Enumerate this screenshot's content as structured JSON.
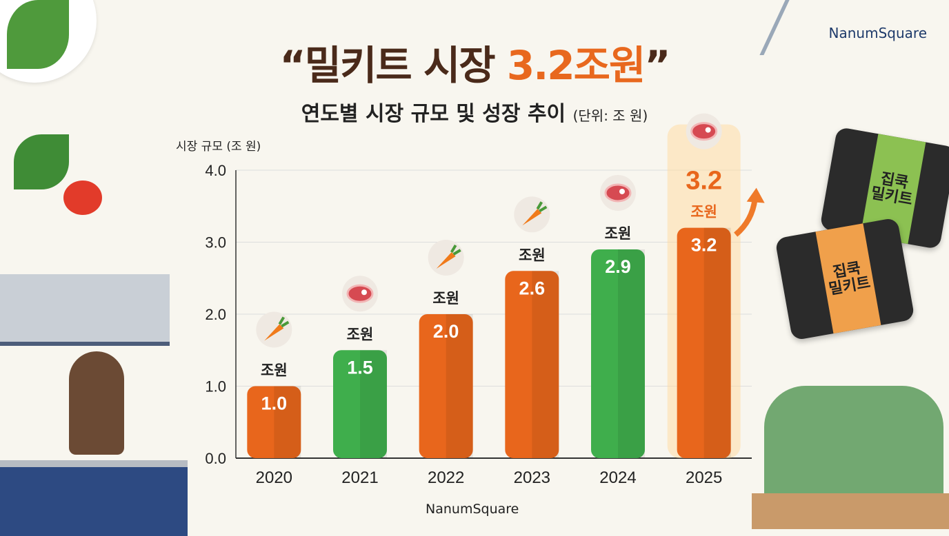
{
  "header": {
    "title_prefix": "“밀키트 시장 ",
    "title_highlight": "3.2조원",
    "title_suffix": "”",
    "subtitle": "연도별 시장 규모 및 성장 추이",
    "subtitle_unit": "(단위: 조 원)",
    "brand": "NanumSquare"
  },
  "footer": {
    "brand": "NanumSquare"
  },
  "colors": {
    "orange": "#e8661c",
    "green": "#3fae4c",
    "title": "#4a2a1a",
    "accent": "#e8681e"
  },
  "packages": [
    {
      "line1": "집쿡",
      "line2": "밀키트"
    },
    {
      "line1": "집쿡",
      "line2": "밀키트"
    }
  ],
  "chart_data": {
    "type": "bar",
    "title": "연도별 시장 규모 및 성장 추이",
    "ylabel": "시장 규모 (조 원)",
    "xlabel": "",
    "ylim": [
      0,
      4
    ],
    "yticks": [
      "0.0",
      "1.0",
      "2.0",
      "3.0",
      "4.0"
    ],
    "grid": true,
    "categories": [
      "2020",
      "2021",
      "2022",
      "2023",
      "2024",
      "2025"
    ],
    "values": [
      1.0,
      1.5,
      2.0,
      2.6,
      2.9,
      3.2
    ],
    "value_labels": [
      "1.0",
      "1.5",
      "2.0",
      "2.6",
      "2.9",
      "3.2"
    ],
    "unit_label": "조원",
    "bar_colors": [
      "orange",
      "green",
      "orange",
      "orange",
      "green",
      "orange"
    ],
    "icons": [
      "carrot-icon",
      "meat-icon",
      "carrot-icon",
      "carrot-icon",
      "meat-icon",
      "meat-icon"
    ],
    "highlight": {
      "category": "2025",
      "label": "3.2",
      "unit": "조원"
    }
  }
}
